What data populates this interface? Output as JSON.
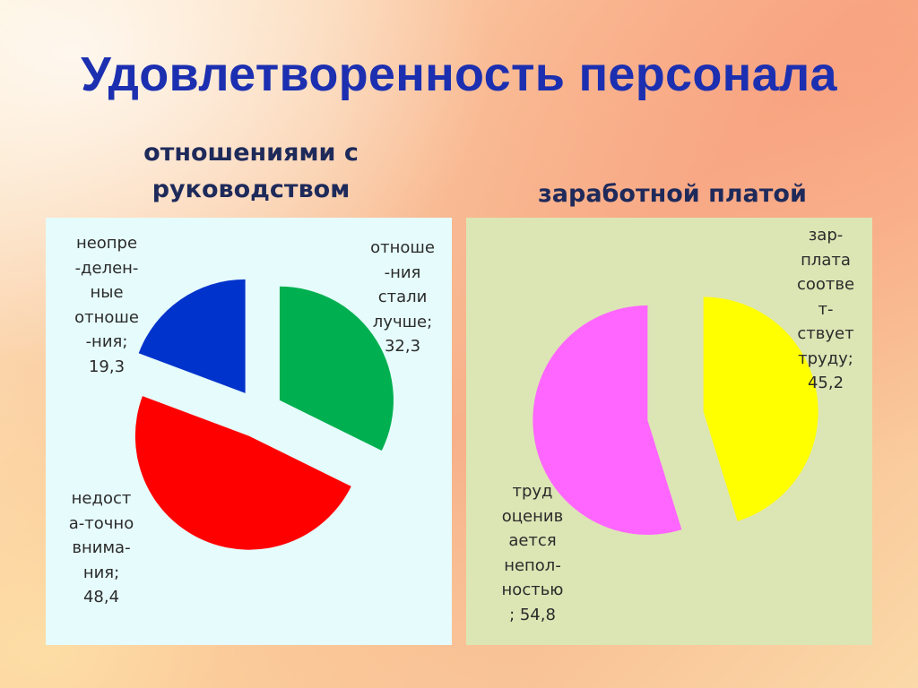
{
  "title": "Удовлетворенность персонала",
  "chart_data": [
    {
      "type": "pie",
      "title": "отношениями с\nруководством",
      "slices": [
        {
          "label": "отноше\n-ния\nстали\nлучше;\n32,3",
          "value": 32.3,
          "color": "#00b050"
        },
        {
          "label": "недост\nа-точно\nвнима-\nния;\n48,4",
          "value": 48.4,
          "color": "#ff0000"
        },
        {
          "label": "неопре\n-делен-\nные\nотноше\n-ния;\n19,3",
          "value": 19.3,
          "color": "#0033cc"
        }
      ]
    },
    {
      "type": "pie",
      "title": "заработной платой",
      "slices": [
        {
          "label": "зар-\nплата\nсоотве\nт-\nствует\nтруду;\n45,2",
          "value": 45.2,
          "color": "#ffff00"
        },
        {
          "label": "труд\nоценив\nается\nнепол-\nностью\n; 54,8",
          "value": 54.8,
          "color": "#ff66ff"
        }
      ]
    }
  ]
}
